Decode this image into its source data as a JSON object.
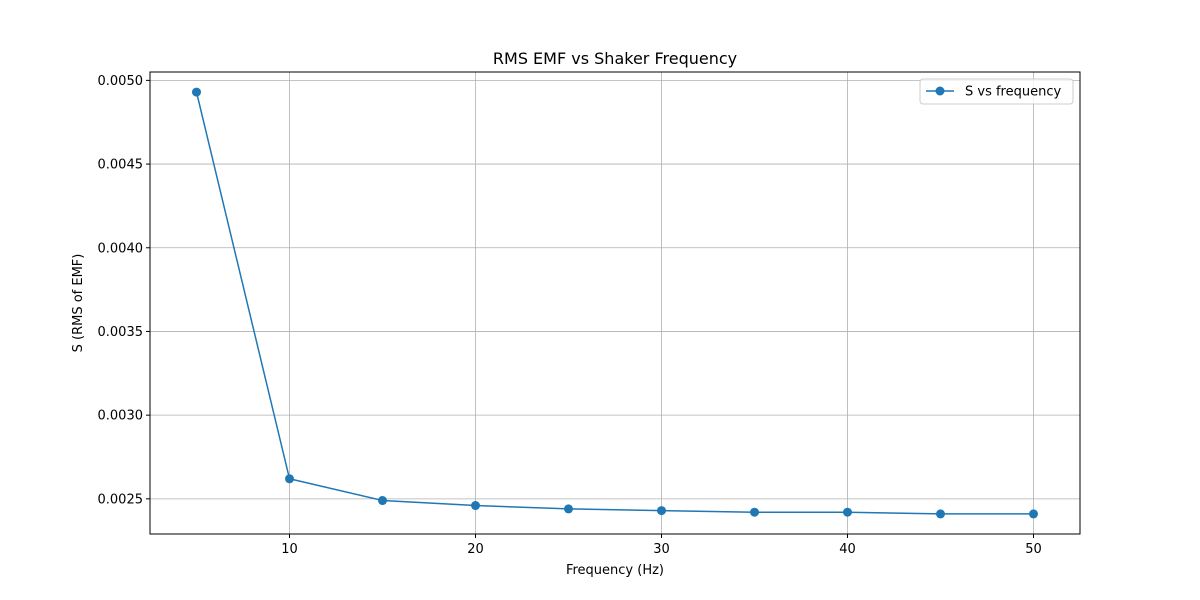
{
  "chart_data": {
    "type": "line",
    "title": "RMS EMF vs Shaker Frequency",
    "xlabel": "Frequency (Hz)",
    "ylabel": "S (RMS of EMF)",
    "xlim": [
      2.5,
      52.5
    ],
    "ylim": [
      0.00229,
      0.00505
    ],
    "x_ticks": [
      10,
      20,
      30,
      40,
      50
    ],
    "x_tick_labels": [
      "10",
      "20",
      "30",
      "40",
      "50"
    ],
    "y_ticks": [
      0.0025,
      0.003,
      0.0035,
      0.004,
      0.0045,
      0.005
    ],
    "y_tick_labels": [
      "0.0025",
      "0.0030",
      "0.0035",
      "0.0040",
      "0.0045",
      "0.0050"
    ],
    "grid": true,
    "legend_position": "top-right",
    "series": [
      {
        "name": "S vs frequency",
        "color": "#1f77b4",
        "marker": "circle",
        "x": [
          5,
          10,
          15,
          20,
          25,
          30,
          35,
          40,
          45,
          50
        ],
        "y": [
          0.00493,
          0.00262,
          0.00249,
          0.00246,
          0.00244,
          0.00243,
          0.00242,
          0.00242,
          0.00241,
          0.00241
        ]
      }
    ]
  }
}
